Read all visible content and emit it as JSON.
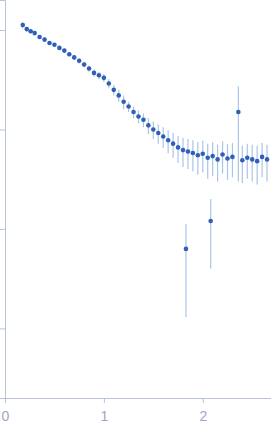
{
  "chart_data": {
    "type": "scatter",
    "log": "y",
    "tick_labels": "x",
    "color": "#2f5fb7",
    "marker": "circle",
    "xlim": [
      0,
      2.69
    ],
    "xticks": [
      0,
      1,
      2
    ],
    "ylim": [
      0.0002,
      2
    ],
    "yticks": [
      1,
      0.1,
      0.01,
      0.001
    ],
    "x": [
      0.18,
      0.22,
      0.26,
      0.3,
      0.35,
      0.4,
      0.45,
      0.5,
      0.55,
      0.6,
      0.65,
      0.7,
      0.75,
      0.8,
      0.85,
      0.9,
      0.95,
      1.0,
      1.05,
      1.1,
      1.15,
      1.2,
      1.25,
      1.3,
      1.35,
      1.4,
      1.45,
      1.5,
      1.55,
      1.6,
      1.65,
      1.7,
      1.75,
      1.8,
      1.83,
      1.85,
      1.9,
      1.95,
      2.0,
      2.05,
      2.08,
      2.1,
      2.15,
      2.2,
      2.25,
      2.3,
      2.36,
      2.4,
      2.45,
      2.5,
      2.55,
      2.6,
      2.65
    ],
    "values": [
      1.12,
      1.02,
      0.97,
      0.93,
      0.85,
      0.8,
      0.74,
      0.71,
      0.66,
      0.62,
      0.57,
      0.53,
      0.49,
      0.45,
      0.41,
      0.37,
      0.35,
      0.33,
      0.29,
      0.25,
      0.22,
      0.19,
      0.17,
      0.15,
      0.135,
      0.125,
      0.11,
      0.1,
      0.092,
      0.085,
      0.078,
      0.072,
      0.066,
      0.062,
      0.0063,
      0.06,
      0.058,
      0.055,
      0.057,
      0.052,
      0.012,
      0.054,
      0.05,
      0.056,
      0.051,
      0.053,
      0.15,
      0.049,
      0.052,
      0.05,
      0.048,
      0.053,
      0.05
    ],
    "errors": [
      0.08,
      0.06,
      0.05,
      0.05,
      0.04,
      0.04,
      0.03,
      0.03,
      0.03,
      0.03,
      0.03,
      0.03,
      0.03,
      0.03,
      0.03,
      0.03,
      0.03,
      0.03,
      0.03,
      0.03,
      0.03,
      0.03,
      0.02,
      0.02,
      0.02,
      0.02,
      0.02,
      0.02,
      0.02,
      0.02,
      0.02,
      0.02,
      0.02,
      0.02,
      0.005,
      0.02,
      0.02,
      0.02,
      0.02,
      0.02,
      0.008,
      0.02,
      0.02,
      0.02,
      0.02,
      0.02,
      0.12,
      0.02,
      0.02,
      0.02,
      0.02,
      0.02,
      0.02
    ]
  }
}
